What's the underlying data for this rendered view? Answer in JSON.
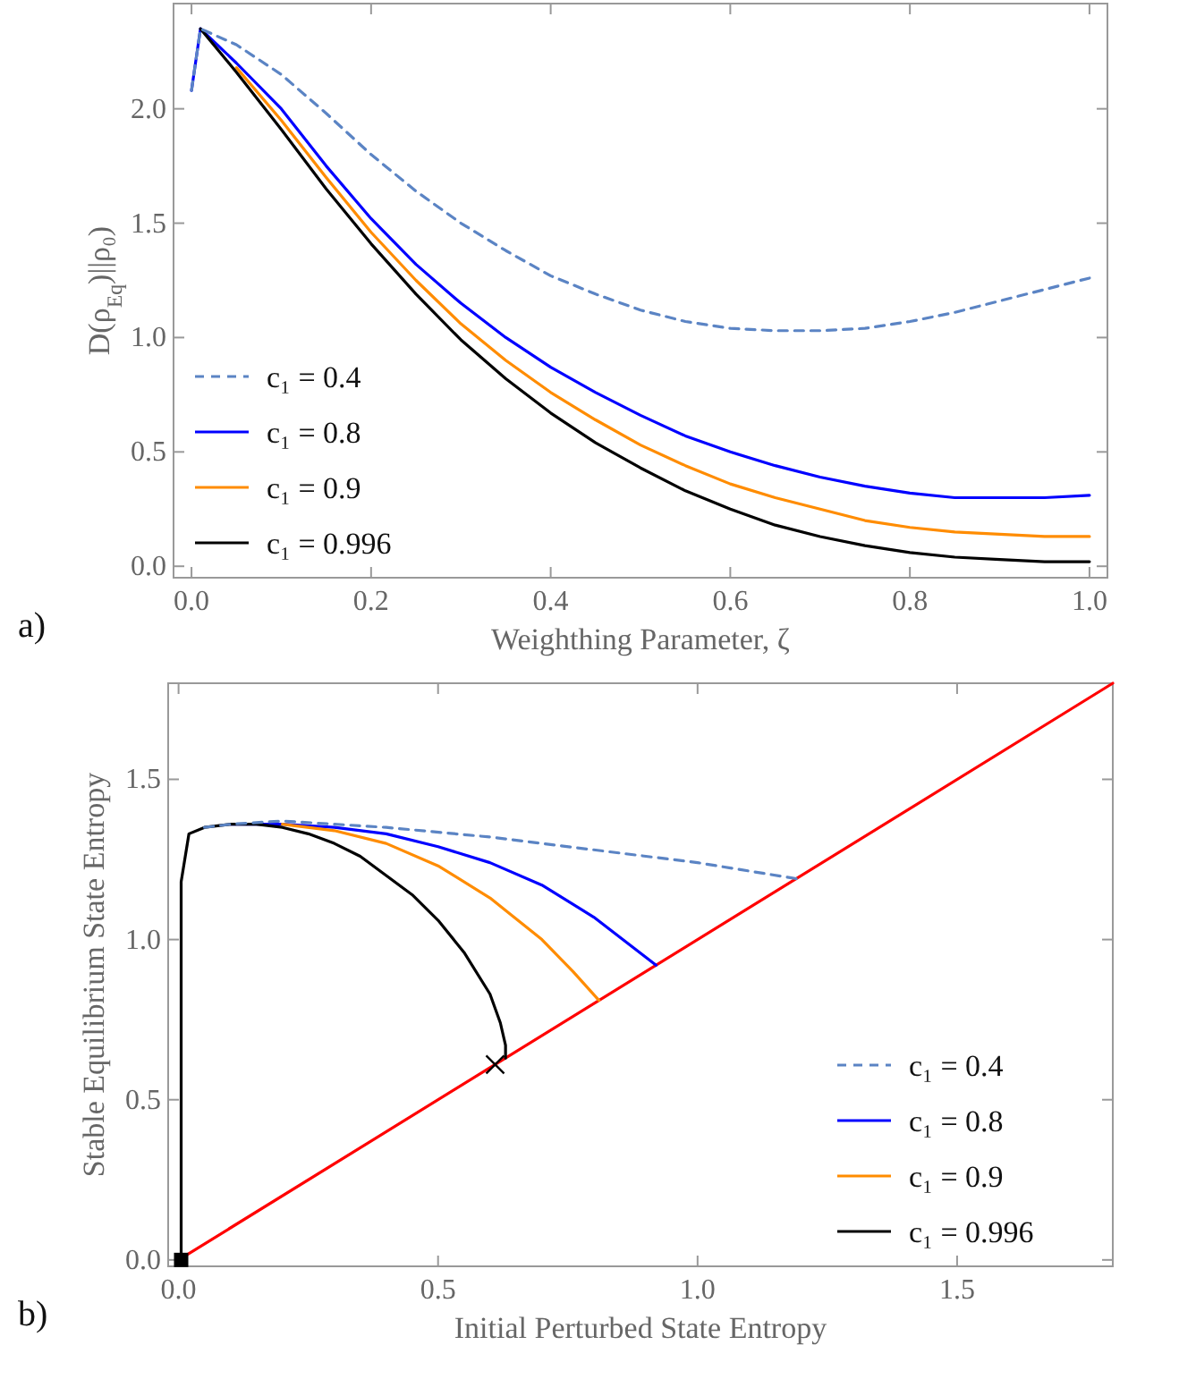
{
  "chart_data": [
    {
      "type": "line",
      "xlabel": "Weighthing Parameter, ζ",
      "ylabel": "D(ρ$_{Eq}$)||ρ₀)",
      "xlim": [
        -0.02,
        1.02
      ],
      "ylim": [
        -0.05,
        2.46
      ],
      "xticks": [
        {
          "value": 0,
          "label": "0.0"
        },
        {
          "value": 0.2,
          "label": "0.2"
        },
        {
          "value": 0.4,
          "label": "0.4"
        },
        {
          "value": 0.6,
          "label": "0.6"
        },
        {
          "value": 0.8,
          "label": "0.8"
        },
        {
          "value": 1,
          "label": "1.0"
        }
      ],
      "yticks": [
        {
          "value": 0,
          "label": "0.0"
        },
        {
          "value": 0.5,
          "label": "0.5"
        },
        {
          "value": 1,
          "label": "1.0"
        },
        {
          "value": 1.5,
          "label": "1.5"
        },
        {
          "value": 2,
          "label": "2.0"
        }
      ],
      "legend": "bottom left",
      "grid": false,
      "marker": "none",
      "annotations": [
        "a)"
      ],
      "series": [
        {
          "name": "c₁ = 0.4",
          "color": "#5b84c4",
          "line_style": "dashed",
          "x": [
            0,
            0.01,
            0.05,
            0.1,
            0.15,
            0.2,
            0.25,
            0.3,
            0.35,
            0.4,
            0.45,
            0.5,
            0.55,
            0.6,
            0.65,
            0.7,
            0.75,
            0.8,
            0.85,
            0.9,
            0.95,
            1.0
          ],
          "values": [
            2.08,
            2.35,
            2.28,
            2.15,
            1.98,
            1.8,
            1.64,
            1.5,
            1.38,
            1.27,
            1.19,
            1.12,
            1.07,
            1.04,
            1.03,
            1.03,
            1.04,
            1.07,
            1.11,
            1.16,
            1.21,
            1.26
          ]
        },
        {
          "name": "c₁ = 0.8",
          "color": "#0000ff",
          "line_style": "solid",
          "x": [
            0,
            0.01,
            0.05,
            0.1,
            0.15,
            0.2,
            0.25,
            0.3,
            0.35,
            0.4,
            0.45,
            0.5,
            0.55,
            0.6,
            0.65,
            0.7,
            0.75,
            0.8,
            0.85,
            0.9,
            0.95,
            1.0
          ],
          "values": [
            2.08,
            2.35,
            2.2,
            2.0,
            1.75,
            1.52,
            1.32,
            1.15,
            1.0,
            0.87,
            0.76,
            0.66,
            0.57,
            0.5,
            0.44,
            0.39,
            0.35,
            0.32,
            0.3,
            0.3,
            0.3,
            0.31
          ]
        },
        {
          "name": "c₁ = 0.9",
          "color": "#ff8c00",
          "line_style": "solid",
          "x": [
            0.05,
            0.1,
            0.15,
            0.2,
            0.25,
            0.3,
            0.35,
            0.4,
            0.45,
            0.5,
            0.55,
            0.6,
            0.65,
            0.7,
            0.75,
            0.8,
            0.85,
            0.9,
            0.95,
            1.0
          ],
          "values": [
            2.18,
            1.95,
            1.7,
            1.46,
            1.25,
            1.06,
            0.9,
            0.76,
            0.64,
            0.53,
            0.44,
            0.36,
            0.3,
            0.25,
            0.2,
            0.17,
            0.15,
            0.14,
            0.13,
            0.13
          ]
        },
        {
          "name": "c₁ = 0.996",
          "color": "#000000",
          "line_style": "solid",
          "x": [
            0.01,
            0.05,
            0.1,
            0.15,
            0.2,
            0.25,
            0.3,
            0.35,
            0.4,
            0.45,
            0.5,
            0.55,
            0.6,
            0.65,
            0.7,
            0.75,
            0.8,
            0.85,
            0.9,
            0.95,
            1.0
          ],
          "values": [
            2.35,
            2.16,
            1.91,
            1.65,
            1.41,
            1.19,
            0.99,
            0.82,
            0.67,
            0.54,
            0.43,
            0.33,
            0.25,
            0.18,
            0.13,
            0.09,
            0.06,
            0.04,
            0.03,
            0.02,
            0.02
          ]
        }
      ]
    },
    {
      "type": "line",
      "xlabel": "Initial Perturbed State Entropy",
      "ylabel": "Stable Equilibrium State Entropy",
      "xlim": [
        -0.02,
        1.8
      ],
      "ylim": [
        -0.02,
        1.8
      ],
      "xticks": [
        {
          "value": 0,
          "label": "0.0"
        },
        {
          "value": 0.5,
          "label": "0.5"
        },
        {
          "value": 1,
          "label": "1.0"
        },
        {
          "value": 1.5,
          "label": "1.5"
        }
      ],
      "yticks": [
        {
          "value": 0,
          "label": "0.0"
        },
        {
          "value": 0.5,
          "label": "0.5"
        },
        {
          "value": 1,
          "label": "1.0"
        },
        {
          "value": 1.5,
          "label": "1.5"
        }
      ],
      "legend": "bottom right",
      "grid": false,
      "marker": "none",
      "annotations": [
        "b)"
      ],
      "series": [
        {
          "color": "#ff0000",
          "line_style": "solid",
          "x": [
            0,
            1.8
          ],
          "values": [
            0,
            1.8
          ]
        },
        {
          "name": "c₁ = 0.4",
          "color": "#5b84c4",
          "line_style": "dashed",
          "x": [
            0.05,
            0.1,
            0.2,
            0.4,
            0.6,
            0.8,
            1.0,
            1.19
          ],
          "values": [
            1.35,
            1.36,
            1.37,
            1.35,
            1.32,
            1.28,
            1.24,
            1.19
          ]
        },
        {
          "name": "c₁ = 0.8",
          "color": "#0000ff",
          "line_style": "solid",
          "x": [
            0.1,
            0.2,
            0.3,
            0.4,
            0.5,
            0.6,
            0.7,
            0.8,
            0.92
          ],
          "values": [
            1.36,
            1.36,
            1.35,
            1.33,
            1.29,
            1.24,
            1.17,
            1.07,
            0.92
          ]
        },
        {
          "name": "c₁ = 0.9",
          "color": "#ff8c00",
          "line_style": "solid",
          "x": [
            0.2,
            0.3,
            0.4,
            0.5,
            0.6,
            0.7,
            0.76,
            0.81
          ],
          "values": [
            1.36,
            1.34,
            1.3,
            1.23,
            1.13,
            1.0,
            0.9,
            0.81
          ]
        },
        {
          "name": "c₁ = 0.996",
          "color": "#000000",
          "line_style": "solid",
          "x": [
            0.005,
            0.005,
            0.02,
            0.05,
            0.1,
            0.15,
            0.2,
            0.25,
            0.3,
            0.35,
            0.4,
            0.45,
            0.5,
            0.55,
            0.6,
            0.62,
            0.63,
            0.63
          ],
          "values": [
            0,
            1.18,
            1.33,
            1.35,
            1.36,
            1.36,
            1.35,
            1.33,
            1.3,
            1.26,
            1.2,
            1.14,
            1.06,
            0.96,
            0.83,
            0.74,
            0.67,
            0.63
          ]
        },
        {
          "type": "scatter",
          "marker": "square",
          "color": "#000000",
          "x": [
            0.005
          ],
          "values": [
            0
          ]
        },
        {
          "type": "scatter",
          "marker": "cross",
          "color": "#000000",
          "x": [
            0.61
          ],
          "values": [
            0.61
          ]
        }
      ]
    }
  ]
}
